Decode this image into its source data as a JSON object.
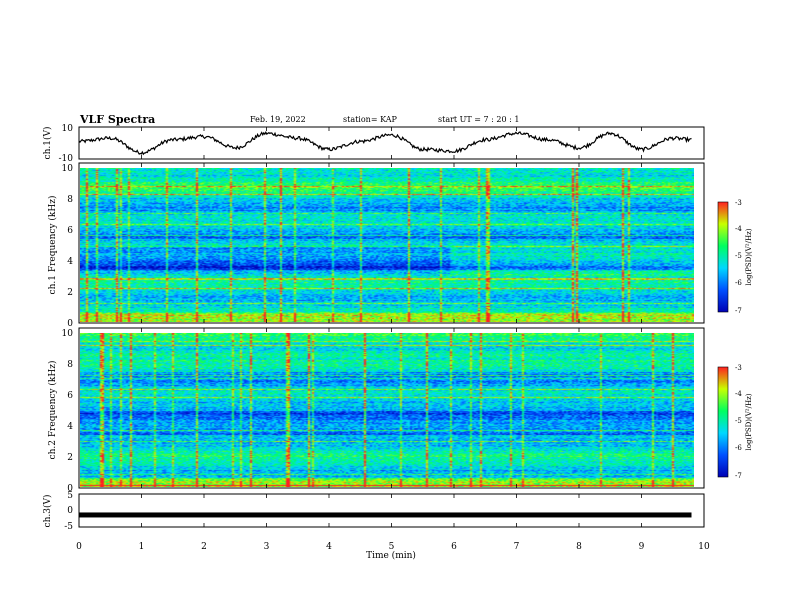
{
  "header": {
    "title": "VLF Spectra",
    "date": "Feb. 19, 2022",
    "station": "station= KAP",
    "start": "start  UT =   7 : 20 : 1"
  },
  "colors": {
    "spectrum_scale": [
      "#0000b4",
      "#0050ff",
      "#00d8ff",
      "#00ff60",
      "#c8ff00",
      "#ff2020"
    ],
    "trace": "#000000",
    "frame": "#000000"
  },
  "chart_data": [
    {
      "type": "line",
      "panel": "ch.1 waveform",
      "ylabel": "ch.1(V)",
      "ylim": [
        -10,
        10
      ],
      "yticks": [
        "10",
        "-10"
      ],
      "xlim": [
        0,
        10
      ],
      "x": [
        0,
        0.5,
        1.0,
        1.5,
        2.0,
        2.5,
        3.0,
        3.5,
        4.0,
        4.5,
        5.0,
        5.5,
        6.0,
        6.5,
        7.0,
        7.5,
        8.0,
        8.5,
        9.0,
        9.5,
        9.8
      ],
      "y": [
        1,
        3,
        -6,
        2,
        4,
        -3,
        6,
        3,
        -4,
        1,
        5,
        -4,
        -5,
        2,
        6,
        2,
        -3,
        6,
        -4,
        3,
        2
      ]
    },
    {
      "type": "heatmap",
      "panel": "ch.1 spectrum",
      "ylabel": "ch.1 Frequency (kHz)",
      "ylim": [
        0,
        10
      ],
      "yticks": [
        "0",
        "2",
        "4",
        "6",
        "8",
        "10"
      ],
      "xlim": [
        0,
        10
      ],
      "colorbar": {
        "label": "log(PSD)(V²/Hz)",
        "ticks": [
          "-3",
          "-4",
          "-5",
          "-6",
          "-7"
        ],
        "range": [
          -7,
          -3
        ]
      }
    },
    {
      "type": "heatmap",
      "panel": "ch.2 spectrum",
      "ylabel": "ch.2 Frequency (kHz)",
      "ylim": [
        0,
        10
      ],
      "yticks": [
        "0",
        "2",
        "4",
        "6",
        "8",
        "10"
      ],
      "xlim": [
        0,
        10
      ],
      "colorbar": {
        "label": "log(PSD)(V²/Hz)",
        "ticks": [
          "-3",
          "-4",
          "-5",
          "-6",
          "-7"
        ],
        "range": [
          -7,
          -3
        ]
      }
    },
    {
      "type": "line",
      "panel": "ch.3 waveform",
      "ylabel": "ch.3(V)",
      "ylim": [
        -5,
        5
      ],
      "yticks": [
        "5",
        "0",
        "-5"
      ],
      "xlim": [
        0,
        10
      ],
      "x": [
        0,
        9.8
      ],
      "y": [
        -1.2,
        -1.2
      ]
    }
  ],
  "xaxis": {
    "label": "Time  (min)",
    "ticks": [
      "0",
      "1",
      "2",
      "3",
      "4",
      "5",
      "6",
      "7",
      "8",
      "9",
      "10"
    ]
  }
}
